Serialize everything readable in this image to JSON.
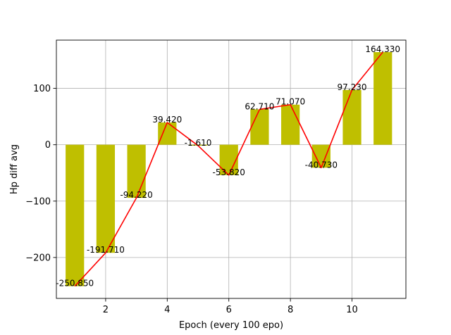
{
  "chart_data": {
    "type": "bar",
    "xlabel": "Epoch (every 100 epo)",
    "ylabel": "Hp diff avg",
    "x": [
      1,
      2,
      3,
      4,
      5,
      6,
      7,
      8,
      9,
      10,
      11
    ],
    "values": [
      -250.85,
      -191.71,
      -94.22,
      39.42,
      -1.61,
      -53.82,
      62.71,
      71.07,
      -40.73,
      97.23,
      164.33
    ],
    "labels": [
      "-250.850",
      "-191.710",
      "-94.220",
      "39.420",
      "-1.610",
      "-53.820",
      "62.710",
      "71.070",
      "-40.730",
      "97.230",
      "164.330"
    ],
    "xlim": [
      0.4,
      11.75
    ],
    "ylim": [
      -272.6,
      185.6
    ],
    "xticks": [
      2,
      4,
      6,
      8,
      10
    ],
    "xtick_labels": [
      "2",
      "4",
      "6",
      "8",
      "10"
    ],
    "yticks": [
      -200,
      -100,
      0,
      100
    ],
    "ytick_labels": [
      "−200",
      "−100",
      "0",
      "100"
    ],
    "grid": true,
    "bar_color": "#bfbf00",
    "line_color": "#ff0000",
    "overlay_line": true
  }
}
